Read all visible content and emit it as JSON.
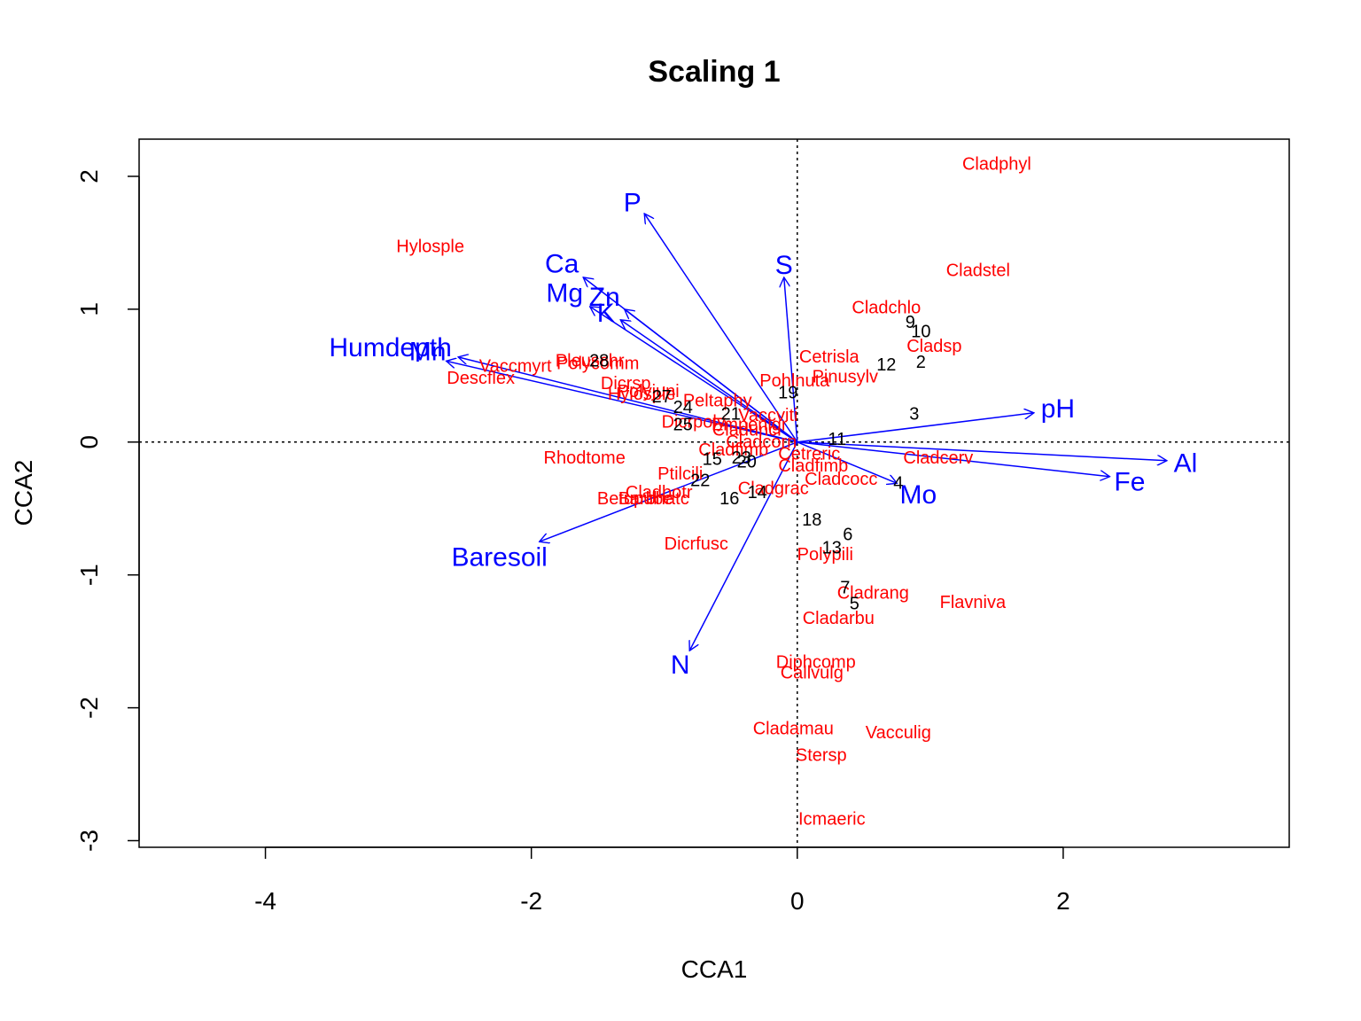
{
  "chart_data": {
    "type": "scatter",
    "title": "Scaling 1",
    "xlabel": "CCA1",
    "ylabel": "CCA2",
    "xlim": [
      -4.95,
      3.7
    ],
    "ylim": [
      -3.05,
      2.28
    ],
    "x_ticks": [
      -4,
      -2,
      0,
      2
    ],
    "y_ticks": [
      -3,
      -2,
      -1,
      0,
      1,
      2
    ],
    "x_tick_labels": [
      "-4",
      "-2",
      "0",
      "2"
    ],
    "y_tick_labels": [
      "-3",
      "-2",
      "-1",
      "0",
      "1",
      "2"
    ],
    "reference_lines": [
      {
        "axis": "x",
        "value": 0,
        "style": "dotted"
      },
      {
        "axis": "y",
        "value": 0,
        "style": "dotted"
      }
    ],
    "colors": {
      "species": "#ff0000",
      "sites": "#000000",
      "arrows": "#0000ff",
      "frame": "#000000"
    },
    "species": [
      {
        "label": "Cladphyl",
        "x": 1.5,
        "y": 2.09
      },
      {
        "label": "Hylosple",
        "x": -2.76,
        "y": 1.47
      },
      {
        "label": "Cladstel",
        "x": 1.36,
        "y": 1.29
      },
      {
        "label": "Cladchlo",
        "x": 0.67,
        "y": 1.01
      },
      {
        "label": "Cladsp",
        "x": 1.03,
        "y": 0.72
      },
      {
        "label": "Cetrisla",
        "x": 0.24,
        "y": 0.64
      },
      {
        "label": "Pinusylv",
        "x": 0.36,
        "y": 0.49
      },
      {
        "label": "Pohlnuta",
        "x": -0.02,
        "y": 0.46
      },
      {
        "label": "Vaccmyrt",
        "x": -2.12,
        "y": 0.57
      },
      {
        "label": "Descflex",
        "x": -2.38,
        "y": 0.48
      },
      {
        "label": "Pleuschr",
        "x": -1.56,
        "y": 0.61
      },
      {
        "label": "Polycomm",
        "x": -1.5,
        "y": 0.59
      },
      {
        "label": "Dicrsp",
        "x": -1.29,
        "y": 0.44
      },
      {
        "label": "Polyjuni",
        "x": -1.12,
        "y": 0.38
      },
      {
        "label": "Hylosple",
        "x": -1.17,
        "y": 0.36
      },
      {
        "label": "Peltaphy",
        "x": -0.6,
        "y": 0.31
      },
      {
        "label": "Vaccviti",
        "x": -0.22,
        "y": 0.2
      },
      {
        "label": "Dicrpoly",
        "x": -0.78,
        "y": 0.15
      },
      {
        "label": "Empenigr",
        "x": -0.36,
        "y": 0.13
      },
      {
        "label": "Cladunci",
        "x": -0.38,
        "y": 0.09
      },
      {
        "label": "Cladcorn",
        "x": -0.27,
        "y": 0.0
      },
      {
        "label": "Cladfimb",
        "x": -0.48,
        "y": -0.06
      },
      {
        "label": "Cetreric",
        "x": 0.09,
        "y": -0.09
      },
      {
        "label": "Cladcerv",
        "x": 1.06,
        "y": -0.12
      },
      {
        "label": "Rhodtome",
        "x": -1.6,
        "y": -0.12
      },
      {
        "label": "Ptilcili",
        "x": -0.88,
        "y": -0.24
      },
      {
        "label": "Cladfimb",
        "x": 0.12,
        "y": -0.18
      },
      {
        "label": "Cladcocc",
        "x": 0.33,
        "y": -0.28
      },
      {
        "label": "Cladbotr",
        "x": -1.04,
        "y": -0.38
      },
      {
        "label": "Cladgrac",
        "x": -0.18,
        "y": -0.35
      },
      {
        "label": "Betupube",
        "x": -1.22,
        "y": -0.43
      },
      {
        "label": "Barbhatc",
        "x": -1.08,
        "y": -0.43
      },
      {
        "label": "Dicrfusc",
        "x": -0.76,
        "y": -0.77
      },
      {
        "label": "Polypili",
        "x": 0.21,
        "y": -0.85
      },
      {
        "label": "Cladrang",
        "x": 0.57,
        "y": -1.14
      },
      {
        "label": "Flavniva",
        "x": 1.32,
        "y": -1.21
      },
      {
        "label": "Cladarbu",
        "x": 0.31,
        "y": -1.33
      },
      {
        "label": "Diphcomp",
        "x": 0.14,
        "y": -1.66
      },
      {
        "label": "Callvulg",
        "x": 0.11,
        "y": -1.74
      },
      {
        "label": "Cladamau",
        "x": -0.03,
        "y": -2.16
      },
      {
        "label": "Vacculig",
        "x": 0.76,
        "y": -2.19
      },
      {
        "label": "Stersp",
        "x": 0.18,
        "y": -2.36
      },
      {
        "label": "Icmaeric",
        "x": 0.26,
        "y": -2.84
      }
    ],
    "sites": [
      {
        "label": "9",
        "x": 0.85,
        "y": 0.9
      },
      {
        "label": "10",
        "x": 0.93,
        "y": 0.83
      },
      {
        "label": "12",
        "x": 0.67,
        "y": 0.58
      },
      {
        "label": "2",
        "x": 0.93,
        "y": 0.6
      },
      {
        "label": "28",
        "x": -1.49,
        "y": 0.61
      },
      {
        "label": "19",
        "x": -0.07,
        "y": 0.37
      },
      {
        "label": "27",
        "x": -1.02,
        "y": 0.34
      },
      {
        "label": "24",
        "x": -0.86,
        "y": 0.26
      },
      {
        "label": "21",
        "x": -0.5,
        "y": 0.21
      },
      {
        "label": "3",
        "x": 0.88,
        "y": 0.21
      },
      {
        "label": "25",
        "x": -0.86,
        "y": 0.13
      },
      {
        "label": "11",
        "x": 0.3,
        "y": 0.02
      },
      {
        "label": "15",
        "x": -0.64,
        "y": -0.13
      },
      {
        "label": "23",
        "x": -0.42,
        "y": -0.12
      },
      {
        "label": "20",
        "x": -0.38,
        "y": -0.15
      },
      {
        "label": "22",
        "x": -0.73,
        "y": -0.29
      },
      {
        "label": "4",
        "x": 0.76,
        "y": -0.31
      },
      {
        "label": "14",
        "x": -0.3,
        "y": -0.38
      },
      {
        "label": "16",
        "x": -0.51,
        "y": -0.43
      },
      {
        "label": "18",
        "x": 0.11,
        "y": -0.59
      },
      {
        "label": "6",
        "x": 0.38,
        "y": -0.7
      },
      {
        "label": "13",
        "x": 0.26,
        "y": -0.8
      },
      {
        "label": "7",
        "x": 0.36,
        "y": -1.1
      },
      {
        "label": "5",
        "x": 0.43,
        "y": -1.22
      }
    ],
    "arrows": [
      {
        "label": "P",
        "x": -1.15,
        "y": 1.72,
        "label_x": -1.24,
        "label_y": 1.8,
        "size": 30
      },
      {
        "label": "S",
        "x": -0.1,
        "y": 1.24,
        "label_x": -0.1,
        "label_y": 1.33,
        "size": 30
      },
      {
        "label": "Ca",
        "x": -1.61,
        "y": 1.24,
        "label_x": -1.77,
        "label_y": 1.34,
        "size": 30
      },
      {
        "label": "Mg",
        "x": -1.56,
        "y": 1.02,
        "label_x": -1.75,
        "label_y": 1.12,
        "size": 30
      },
      {
        "label": "Zn",
        "x": -1.3,
        "y": 1.0,
        "label_x": -1.45,
        "label_y": 1.09,
        "size": 30
      },
      {
        "label": "K",
        "x": -1.33,
        "y": 0.92,
        "label_x": -1.44,
        "label_y": 0.97,
        "size": 30
      },
      {
        "label": "Humdepth",
        "x": -2.55,
        "y": 0.64,
        "label_x": -3.06,
        "label_y": 0.71,
        "size": 30
      },
      {
        "label": "Mn",
        "x": -2.64,
        "y": 0.61,
        "label_x": -2.78,
        "label_y": 0.68,
        "size": 30
      },
      {
        "label": "pH",
        "x": 1.78,
        "y": 0.22,
        "label_x": 1.96,
        "label_y": 0.25,
        "size": 30
      },
      {
        "label": "Al",
        "x": 2.78,
        "y": -0.14,
        "label_x": 2.92,
        "label_y": -0.16,
        "size": 30
      },
      {
        "label": "Fe",
        "x": 2.35,
        "y": -0.26,
        "label_x": 2.5,
        "label_y": -0.3,
        "size": 30
      },
      {
        "label": "Mo",
        "x": 0.75,
        "y": -0.31,
        "label_x": 0.91,
        "label_y": -0.4,
        "size": 30
      },
      {
        "label": "Baresoil",
        "x": -1.94,
        "y": -0.75,
        "label_x": -2.24,
        "label_y": -0.87,
        "size": 30
      },
      {
        "label": "N",
        "x": -0.81,
        "y": -1.57,
        "label_x": -0.88,
        "label_y": -1.68,
        "size": 30
      }
    ]
  }
}
